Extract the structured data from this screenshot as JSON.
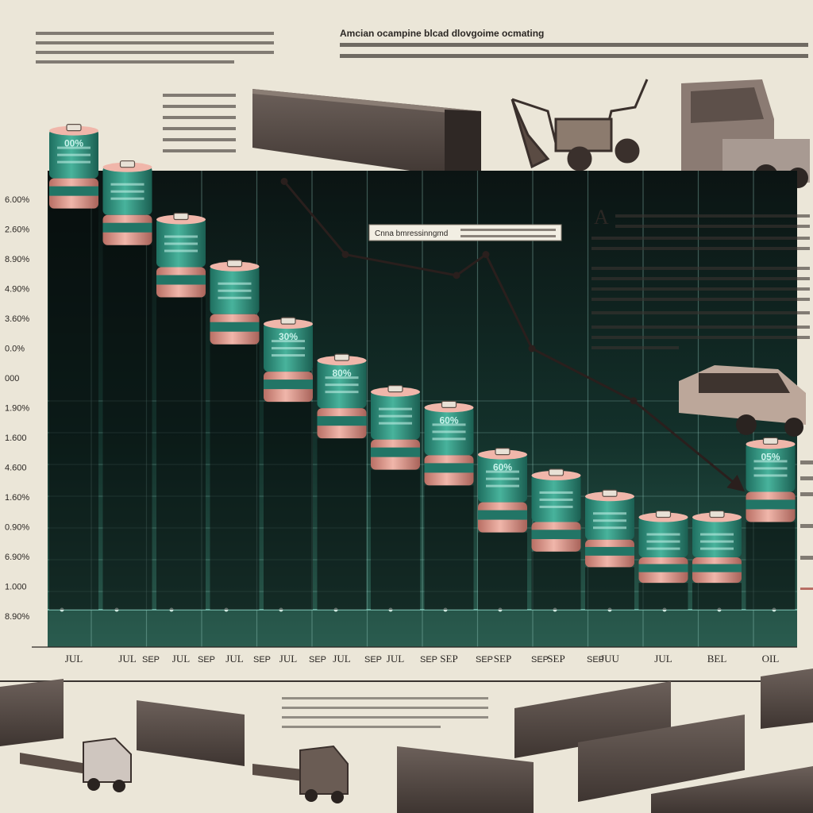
{
  "chart_data": {
    "type": "bar",
    "title": "Amcian ocampine blcad dlovgoime ocmating",
    "big_letter": "A",
    "legend_label": "Cnna bmressinngmd",
    "y_tick_labels": [
      "6.00%",
      "2.60%",
      "8.90%",
      "4.90%",
      "3.60%",
      "0.0%",
      "000",
      "1.90%",
      "1.600",
      "4.600",
      "1.60%",
      "0.90%",
      "6.90%",
      "1.000",
      "8.90%"
    ],
    "categories": [
      "JUL",
      "JUL",
      "JUL",
      "JUL",
      "JUL",
      "JUL",
      "JUL",
      "SEP",
      "SEP",
      "SEP",
      "JUU",
      "JUL",
      "BEL",
      "OIL"
    ],
    "extra_x_labels": [
      "SEP",
      "SEP",
      "SEP",
      "SEP",
      "SEP",
      "SEP",
      "SEP",
      "SEP",
      "SEP"
    ],
    "battery_labels": [
      "00%",
      "",
      "",
      "",
      "30%",
      "80%",
      "",
      "60%",
      "60%",
      "",
      "",
      "",
      "",
      "05%"
    ],
    "values": [
      92,
      85,
      75,
      66,
      55,
      48,
      42,
      39,
      30,
      26,
      22,
      18,
      18,
      32
    ],
    "trend_line": [
      82,
      68,
      64,
      68,
      50,
      40,
      23
    ],
    "ylim": [
      0,
      100
    ],
    "grid": true
  },
  "colors": {
    "bg": "#ebe6d8",
    "panel": "#0d1816",
    "panel_grad": "#214c40",
    "teal": "#2f9b86",
    "teal_dark": "#1d6b5c",
    "pink": "#e3a196",
    "pink_dark": "#b86e64",
    "line": "#2a1f1d"
  },
  "icons": [
    "container-icon",
    "excavator-icon",
    "truck-icon",
    "car-icon",
    "trailer-truck-icon"
  ]
}
